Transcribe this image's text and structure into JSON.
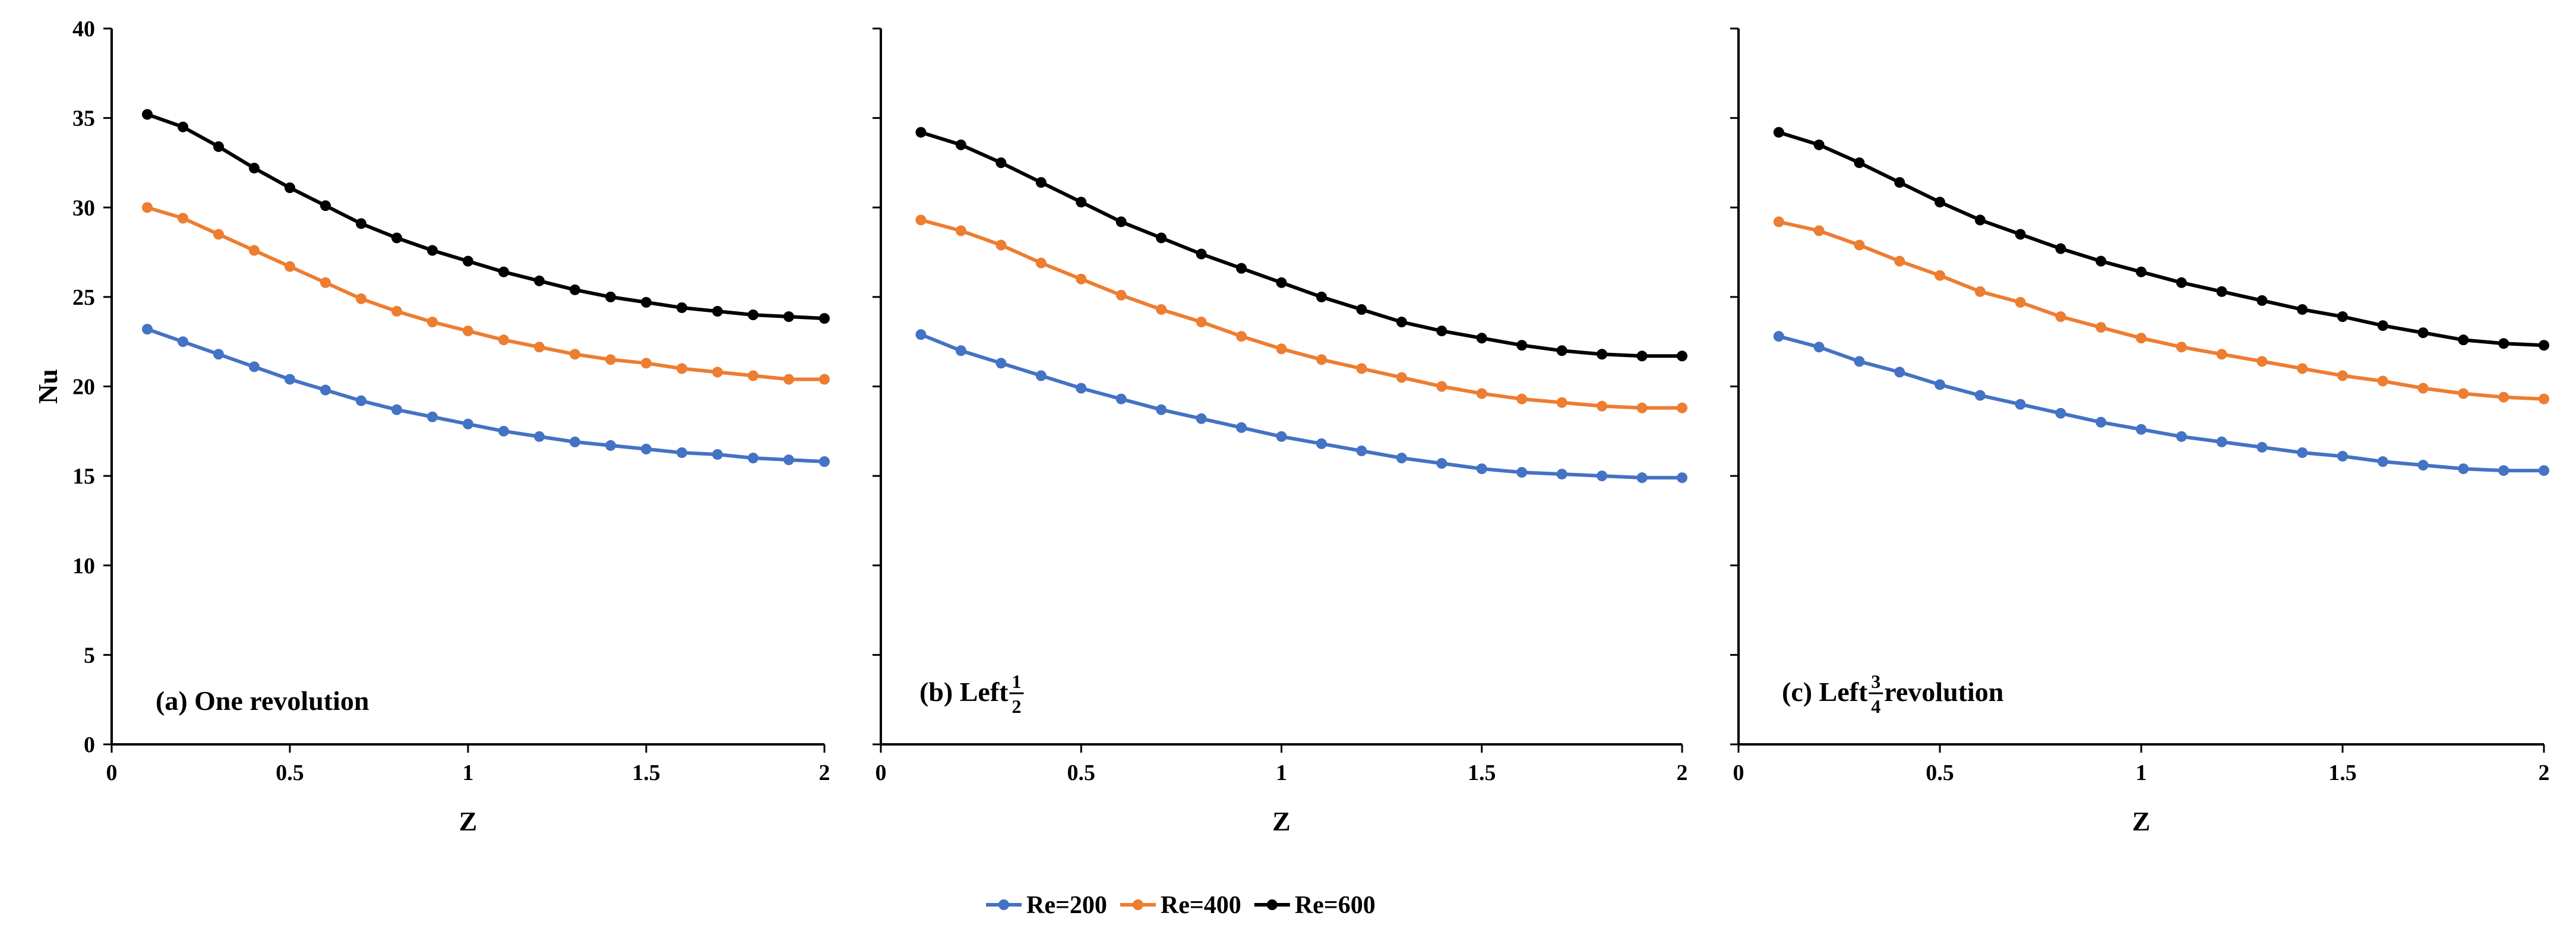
{
  "chart_data": [
    {
      "type": "line",
      "annotation": {
        "prefix": "(a) One revolution",
        "fraction": null,
        "suffix": ""
      },
      "xlabel": "Z",
      "ylabel": "Nu",
      "xlim": [
        0,
        2
      ],
      "ylim": [
        0,
        40
      ],
      "x_ticks": [
        0,
        0.5,
        1,
        1.5,
        2
      ],
      "x_tick_labels": [
        "0",
        "0.5",
        "1",
        "1.5",
        "2"
      ],
      "y_ticks": [
        0,
        5,
        10,
        15,
        20,
        25,
        30,
        35,
        40
      ],
      "y_tick_labels": [
        "0",
        "5",
        "10",
        "15",
        "20",
        "25",
        "30",
        "35",
        "40"
      ],
      "x": [
        0.1,
        0.2,
        0.3,
        0.4,
        0.5,
        0.6,
        0.7,
        0.8,
        0.9,
        1.0,
        1.1,
        1.2,
        1.3,
        1.4,
        1.5,
        1.6,
        1.7,
        1.8,
        1.9,
        2.0
      ],
      "series": [
        {
          "name": "Re=200",
          "color": "#4472C4",
          "values": [
            23.2,
            22.5,
            21.8,
            21.1,
            20.4,
            19.8,
            19.2,
            18.7,
            18.3,
            17.9,
            17.5,
            17.2,
            16.9,
            16.7,
            16.5,
            16.3,
            16.2,
            16.0,
            15.9,
            15.8
          ]
        },
        {
          "name": "Re=400",
          "color": "#ED7D31",
          "values": [
            30.0,
            29.4,
            28.5,
            27.6,
            26.7,
            25.8,
            24.9,
            24.2,
            23.6,
            23.1,
            22.6,
            22.2,
            21.8,
            21.5,
            21.3,
            21.0,
            20.8,
            20.6,
            20.4,
            20.4
          ]
        },
        {
          "name": "Re=600",
          "color": "#000000",
          "values": [
            35.2,
            34.5,
            33.4,
            32.2,
            31.1,
            30.1,
            29.1,
            28.3,
            27.6,
            27.0,
            26.4,
            25.9,
            25.4,
            25.0,
            24.7,
            24.4,
            24.2,
            24.0,
            23.9,
            23.8
          ]
        }
      ]
    },
    {
      "type": "line",
      "annotation": {
        "prefix": "(b) Left ",
        "fraction": [
          "1",
          "2"
        ],
        "suffix": ""
      },
      "xlabel": "Z",
      "ylabel": "",
      "xlim": [
        0,
        2
      ],
      "ylim": [
        0,
        40
      ],
      "x_ticks": [
        0,
        0.5,
        1,
        1.5,
        2
      ],
      "x_tick_labels": [
        "0",
        "0.5",
        "1",
        "1.5",
        "2"
      ],
      "y_ticks": [
        0,
        5,
        10,
        15,
        20,
        25,
        30,
        35,
        40
      ],
      "y_tick_labels": [],
      "x": [
        0.1,
        0.2,
        0.3,
        0.4,
        0.5,
        0.6,
        0.7,
        0.8,
        0.9,
        1.0,
        1.1,
        1.2,
        1.3,
        1.4,
        1.5,
        1.6,
        1.7,
        1.8,
        1.9,
        2.0
      ],
      "series": [
        {
          "name": "Re=200",
          "color": "#4472C4",
          "values": [
            22.9,
            22.0,
            21.3,
            20.6,
            19.9,
            19.3,
            18.7,
            18.2,
            17.7,
            17.2,
            16.8,
            16.4,
            16.0,
            15.7,
            15.4,
            15.2,
            15.1,
            15.0,
            14.9,
            14.9
          ]
        },
        {
          "name": "Re=400",
          "color": "#ED7D31",
          "values": [
            29.3,
            28.7,
            27.9,
            26.9,
            26.0,
            25.1,
            24.3,
            23.6,
            22.8,
            22.1,
            21.5,
            21.0,
            20.5,
            20.0,
            19.6,
            19.3,
            19.1,
            18.9,
            18.8,
            18.8
          ]
        },
        {
          "name": "Re=600",
          "color": "#000000",
          "values": [
            34.2,
            33.5,
            32.5,
            31.4,
            30.3,
            29.2,
            28.3,
            27.4,
            26.6,
            25.8,
            25.0,
            24.3,
            23.6,
            23.1,
            22.7,
            22.3,
            22.0,
            21.8,
            21.7,
            21.7
          ]
        }
      ]
    },
    {
      "type": "line",
      "annotation": {
        "prefix": "(c) Left ",
        "fraction": [
          "3",
          "4"
        ],
        "suffix": " revolution"
      },
      "xlabel": "Z",
      "ylabel": "",
      "xlim": [
        0,
        2
      ],
      "ylim": [
        0,
        40
      ],
      "x_ticks": [
        0,
        0.5,
        1,
        1.5,
        2
      ],
      "x_tick_labels": [
        "0",
        "0.5",
        "1",
        "1.5",
        "2"
      ],
      "y_ticks": [
        0,
        5,
        10,
        15,
        20,
        25,
        30,
        35,
        40
      ],
      "y_tick_labels": [],
      "x": [
        0.1,
        0.2,
        0.3,
        0.4,
        0.5,
        0.6,
        0.7,
        0.8,
        0.9,
        1.0,
        1.1,
        1.2,
        1.3,
        1.4,
        1.5,
        1.6,
        1.7,
        1.8,
        1.9,
        2.0
      ],
      "series": [
        {
          "name": "Re=200",
          "color": "#4472C4",
          "values": [
            22.8,
            22.2,
            21.4,
            20.8,
            20.1,
            19.5,
            19.0,
            18.5,
            18.0,
            17.6,
            17.2,
            16.9,
            16.6,
            16.3,
            16.1,
            15.8,
            15.6,
            15.4,
            15.3,
            15.3
          ]
        },
        {
          "name": "Re=400",
          "color": "#ED7D31",
          "values": [
            29.2,
            28.7,
            27.9,
            27.0,
            26.2,
            25.3,
            24.7,
            23.9,
            23.3,
            22.7,
            22.2,
            21.8,
            21.4,
            21.0,
            20.6,
            20.3,
            19.9,
            19.6,
            19.4,
            19.3
          ]
        },
        {
          "name": "Re=600",
          "color": "#000000",
          "values": [
            34.2,
            33.5,
            32.5,
            31.4,
            30.3,
            29.3,
            28.5,
            27.7,
            27.0,
            26.4,
            25.8,
            25.3,
            24.8,
            24.3,
            23.9,
            23.4,
            23.0,
            22.6,
            22.4,
            22.3
          ]
        }
      ]
    }
  ],
  "legend": {
    "placement": "bottom-center",
    "entries": [
      {
        "label": "Re=200",
        "color": "#4472C4"
      },
      {
        "label": "Re=400",
        "color": "#ED7D31"
      },
      {
        "label": "Re=600",
        "color": "#000000"
      }
    ]
  }
}
